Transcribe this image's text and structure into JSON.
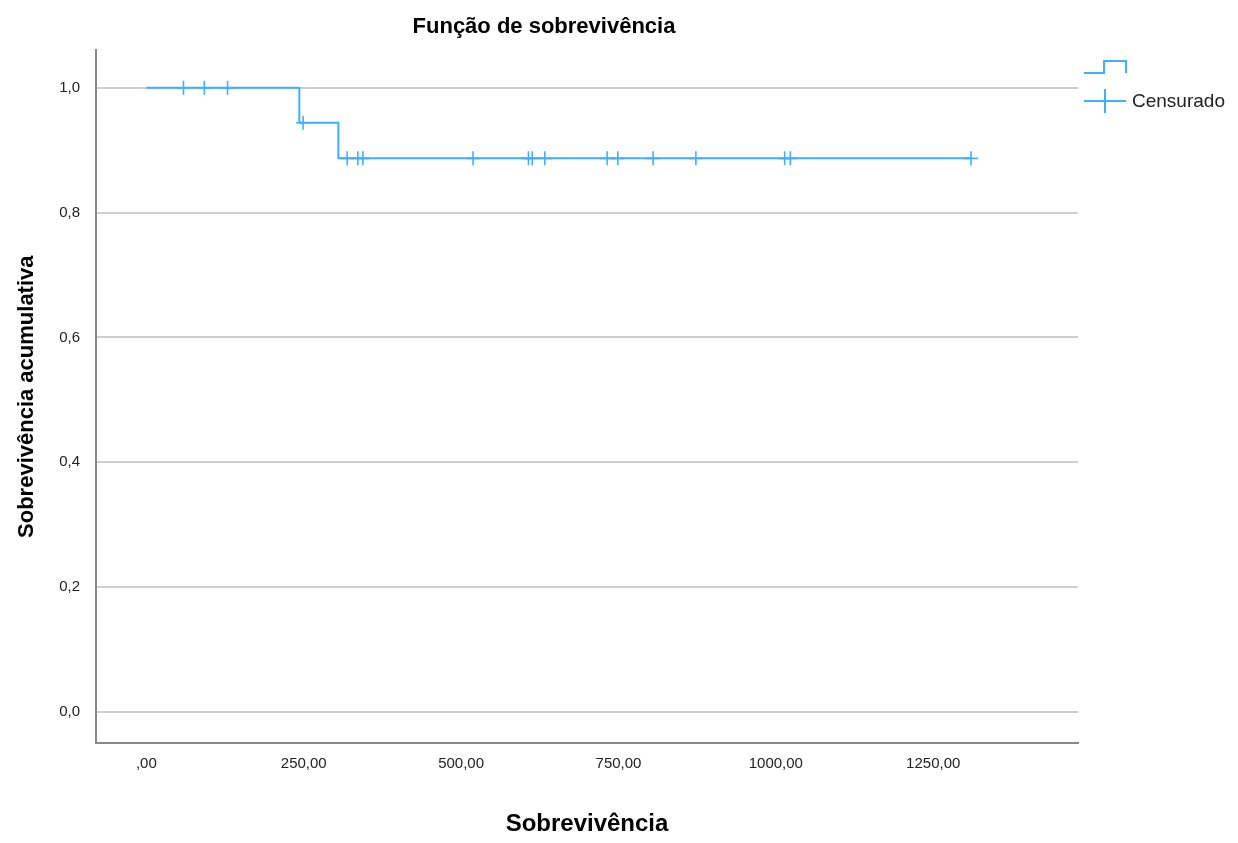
{
  "chart_data": {
    "type": "step",
    "title": "Função de sobrevivência",
    "xlabel": "Sobrevivência",
    "ylabel": "Sobrevivência acumulativa",
    "xlim": [
      -80,
      1480
    ],
    "xticks": [
      {
        "value": 0,
        "label": ",00"
      },
      {
        "value": 250,
        "label": "250,00"
      },
      {
        "value": 500,
        "label": "500,00"
      },
      {
        "value": 750,
        "label": "750,00"
      },
      {
        "value": 1000,
        "label": "1000,00"
      },
      {
        "value": 1250,
        "label": "1250,00"
      }
    ],
    "ylim": [
      -0.05,
      1.06
    ],
    "yticks": [
      {
        "value": 0,
        "label": "0,0"
      },
      {
        "value": 0.2,
        "label": "0,2"
      },
      {
        "value": 0.4,
        "label": "0,4"
      },
      {
        "value": 0.6,
        "label": "0,6"
      },
      {
        "value": 0.8,
        "label": "0,8"
      },
      {
        "value": 1,
        "label": "1,0"
      }
    ],
    "grid": "y",
    "legend": "top right",
    "series": [
      {
        "type": "step",
        "color": "#3fb0ff",
        "x": [
          0,
          243,
          305,
          1310
        ],
        "values": [
          1,
          0.944,
          0.887,
          0.887
        ]
      },
      {
        "type": "scatter",
        "name": "Censurado",
        "color": "#3fb0ff",
        "marker": "cross",
        "x": [
          59,
          92,
          129,
          249,
          319,
          336,
          344,
          519,
          607,
          613,
          633,
          732,
          749,
          805,
          873,
          1014,
          1023,
          1310
        ],
        "values": [
          1,
          1,
          1,
          0.944,
          0.887,
          0.887,
          0.887,
          0.887,
          0.887,
          0.887,
          0.887,
          0.887,
          0.887,
          0.887,
          0.887,
          0.887,
          0.887,
          0.887
        ]
      }
    ]
  }
}
